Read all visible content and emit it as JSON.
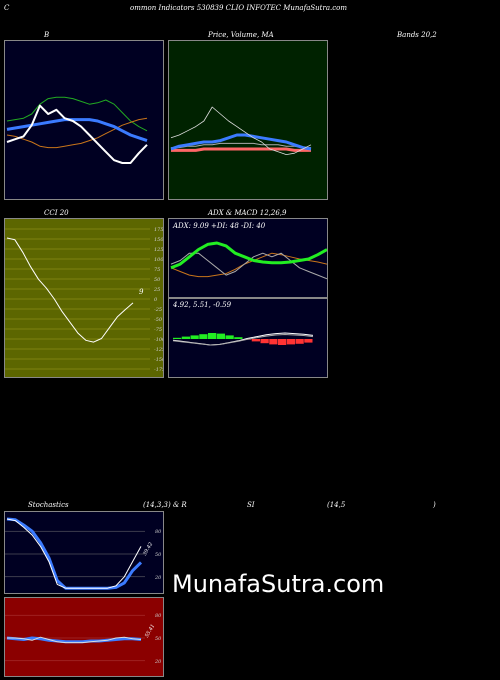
{
  "header": {
    "c_letter": "C",
    "title": "ommon  Indicators 530839 CLIO INFOTEC MunafaSutra.com"
  },
  "panel_titles": {
    "bollinger": "B",
    "price_ma": "Price,  Volume, MA",
    "bands": "Bands 20,2",
    "cci": "CCI 20",
    "adx_macd": "ADX  & MACD 12,26,9",
    "stoch_a": "Stochastics",
    "stoch_b": "(14,3,3) & R",
    "rsi_a": "SI",
    "rsi_b": "(14,5",
    "rsi_c": ")"
  },
  "adx_text": "ADX: 9.09  +DI: 48  -DI: 40",
  "macd_text": "4.92,  5.51,  -0.59",
  "cci_value": "9",
  "stoch_value": "39.42",
  "rsi_value": "55.41",
  "watermark": "MunafaSutra.com",
  "colors": {
    "navy": "#000022",
    "dark_green": "#002200",
    "dark_red": "#8b0000",
    "olive": "#5c6600",
    "blue": "#3b7bff",
    "green": "#22aa22",
    "orange": "#c8741a",
    "white": "#ffffff"
  },
  "chart_data": [
    {
      "type": "line",
      "panel": "bollinger",
      "series": [
        {
          "values": [
            50,
            51,
            52,
            55,
            62,
            66,
            67,
            67,
            66,
            64,
            62,
            63,
            65,
            62,
            56,
            50,
            46,
            43
          ]
        },
        {
          "values": [
            40,
            39,
            37,
            35,
            32,
            31,
            31,
            32,
            33,
            34,
            36,
            38,
            41,
            44,
            47,
            49,
            51,
            52
          ]
        },
        {
          "values": [
            44,
            45,
            46,
            47,
            48,
            49,
            50,
            51,
            51,
            51,
            51,
            50,
            48,
            46,
            43,
            40,
            38,
            36
          ]
        },
        {
          "values": [
            35,
            37,
            39,
            47,
            61,
            55,
            58,
            52,
            50,
            46,
            40,
            34,
            28,
            22,
            20,
            20,
            27,
            33
          ]
        }
      ]
    },
    {
      "type": "line",
      "panel": "price_ma",
      "series": [
        {
          "values": [
            38,
            40,
            43,
            46,
            50,
            60,
            55,
            50,
            46,
            42,
            38,
            35,
            30,
            28,
            26,
            27,
            30,
            33
          ]
        },
        {
          "values": [
            30,
            32,
            33,
            34,
            35,
            35,
            36,
            38,
            40,
            40,
            39,
            38,
            37,
            36,
            35,
            33,
            31,
            30
          ]
        },
        {
          "values": [
            31,
            31,
            32,
            32,
            33,
            33,
            34,
            34,
            34,
            34,
            34,
            33,
            33,
            33,
            32,
            32,
            31,
            31
          ]
        },
        {
          "values": [
            29,
            29,
            29,
            29,
            30,
            30,
            30,
            30,
            30,
            30,
            30,
            30,
            30,
            30,
            30,
            29,
            29,
            29
          ]
        }
      ]
    },
    {
      "type": "line",
      "panel": "cci",
      "ylabels": [
        "175",
        "150",
        "125",
        "100",
        "75",
        "50",
        "25",
        "0",
        "-25",
        "-50",
        "-75",
        "-100",
        "-125",
        "-150",
        "-175"
      ],
      "ylim": [
        -175,
        175
      ],
      "series": [
        {
          "values": [
            190,
            185,
            150,
            110,
            75,
            50,
            20,
            -15,
            -45,
            -75,
            -95,
            -100,
            -90,
            -60,
            -30,
            -10,
            9
          ]
        }
      ]
    },
    {
      "type": "line",
      "panel": "adx",
      "series": [
        {
          "values": [
            40,
            45,
            55,
            65,
            72,
            74,
            70,
            60,
            55,
            50,
            48,
            47,
            47,
            48,
            50,
            52,
            58,
            65
          ]
        },
        {
          "values": [
            40,
            35,
            30,
            28,
            28,
            30,
            32,
            38,
            45,
            50,
            55,
            60,
            58,
            55,
            52,
            50,
            48,
            45
          ]
        },
        {
          "values": [
            45,
            50,
            60,
            60,
            50,
            40,
            30,
            35,
            45,
            55,
            60,
            55,
            60,
            50,
            40,
            35,
            30,
            25
          ]
        }
      ]
    },
    {
      "type": "bar",
      "panel": "macd",
      "values": [
        0.2,
        0.4,
        0.6,
        0.8,
        1.0,
        0.9,
        0.6,
        0.3,
        -0.1,
        -0.4,
        -0.7,
        -0.9,
        -1.0,
        -0.9,
        -0.8,
        -0.6
      ]
    },
    {
      "type": "line",
      "panel": "stochastics",
      "ylabels": [
        "80",
        "50",
        "20"
      ],
      "series": [
        {
          "values": [
            96,
            94,
            85,
            75,
            60,
            40,
            10,
            5,
            5,
            5,
            5,
            5,
            5,
            8,
            20,
            40,
            60
          ]
        },
        {
          "values": [
            96,
            95,
            88,
            80,
            65,
            45,
            15,
            5,
            5,
            5,
            5,
            5,
            5,
            6,
            12,
            28,
            39
          ]
        }
      ]
    },
    {
      "type": "line",
      "panel": "rsi",
      "ylabels": [
        "80",
        "50",
        "20"
      ],
      "series": [
        {
          "values": [
            50,
            50,
            49,
            47,
            51,
            48,
            45,
            44,
            44,
            44,
            45,
            46,
            47,
            50,
            51,
            49,
            48
          ]
        },
        {
          "values": [
            50,
            49,
            48,
            50,
            49,
            47,
            46,
            45,
            45,
            45,
            46,
            46,
            47,
            48,
            49,
            49,
            48
          ]
        }
      ]
    }
  ]
}
